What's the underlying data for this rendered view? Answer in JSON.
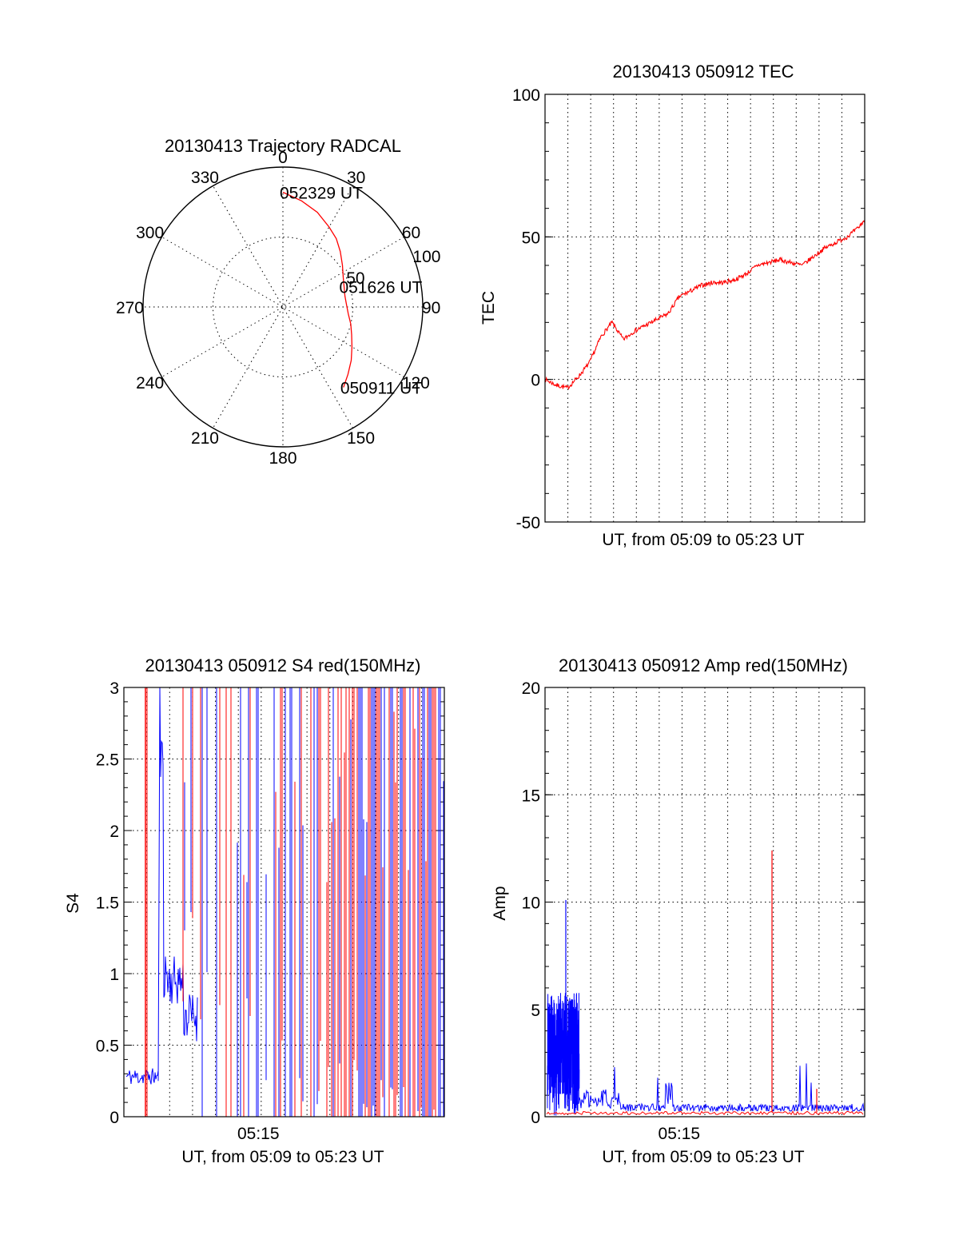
{
  "chart_data": [
    {
      "type": "polar",
      "title": "20130413 Trajectory RADCAL",
      "angle_labels": [
        "0",
        "30",
        "60",
        "90",
        "120",
        "150",
        "180",
        "210",
        "240",
        "270",
        "300",
        "330"
      ],
      "radius_labels": [
        "50",
        "100"
      ],
      "rmax": 100,
      "grid": true,
      "line_color": "#ff0000",
      "trajectory": {
        "azimuth_deg": [
          0,
          10,
          20,
          30,
          38,
          46,
          55,
          64,
          72,
          80,
          88,
          96,
          104,
          112,
          120,
          128,
          136,
          143
        ],
        "radius": [
          82,
          77,
          72,
          66,
          62,
          57,
          52,
          48,
          46,
          45,
          45.5,
          47,
          50,
          53,
          57,
          62,
          67,
          72
        ]
      },
      "annotations": [
        {
          "text": "052329 UT",
          "azimuth_deg": 0,
          "radius": 82
        },
        {
          "text": "051626 UT",
          "azimuth_deg": 71,
          "radius": 45
        },
        {
          "text": "050911 UT",
          "azimuth_deg": 143,
          "radius": 72
        }
      ]
    },
    {
      "type": "line",
      "title": "20130413 050912 TEC",
      "xlabel": "UT, from 05:09 to 05:23 UT",
      "ylabel": "TEC",
      "xlim": [
        0,
        14.3
      ],
      "ylim": [
        -50,
        100
      ],
      "yticks": [
        "100",
        "50",
        "0",
        "-50"
      ],
      "grid": true,
      "series": [
        {
          "color": "#ff0000",
          "x": [
            0,
            0.5,
            1.0,
            1.5,
            2.0,
            2.5,
            3.0,
            3.5,
            4.0,
            4.5,
            5.0,
            5.5,
            6.0,
            6.5,
            7.0,
            7.5,
            8.0,
            8.5,
            9.0,
            9.5,
            10.0,
            10.5,
            11.0,
            11.5,
            12.0,
            12.5,
            13.0,
            13.5,
            14.0,
            14.3
          ],
          "y": [
            0,
            -2,
            -3,
            1,
            6,
            15,
            20,
            14,
            17,
            19,
            21,
            23,
            29,
            31,
            33,
            34,
            34,
            35,
            37,
            40,
            41,
            42,
            41,
            40,
            43,
            46,
            48,
            50,
            53,
            56
          ]
        }
      ]
    },
    {
      "type": "line",
      "title": "20130413 050912 S4 red(150MHz)",
      "xlabel": "UT, from 05:09 to 05:23 UT",
      "ylabel": "S4",
      "xlim": [
        0,
        14.3
      ],
      "ylim": [
        0,
        3
      ],
      "yticks": [
        "3",
        "2.5",
        "2",
        "1.5",
        "1",
        "0.5",
        "0"
      ],
      "xticks": [
        "05:15"
      ],
      "grid": true,
      "series": [
        {
          "color": "#0000ff",
          "x": [
            0,
            0.4,
            0.8,
            1.2,
            1.4,
            1.6,
            1.8,
            2.0,
            2.3,
            2.6
          ],
          "y": [
            0.3,
            0.26,
            0.3,
            0.25,
            0.28,
            3,
            1.0,
            0.9,
            1.05,
            0.65
          ]
        },
        {
          "color": "#ff0000",
          "x": [
            0.9,
            0.9
          ],
          "y": [
            0,
            3
          ]
        }
      ]
    },
    {
      "type": "line",
      "title": "20130413 050912 Amp red(150MHz)",
      "xlabel": "UT, from 05:09 to 05:23 UT",
      "ylabel": "Amp",
      "xlim": [
        0,
        14.3
      ],
      "ylim": [
        0,
        20
      ],
      "yticks": [
        "20",
        "15",
        "10",
        "5",
        "0"
      ],
      "xticks": [
        "05:15"
      ],
      "grid": true,
      "series": [
        {
          "color": "#0000ff",
          "x": [
            0,
            0.5,
            0.8,
            1.0,
            1.3,
            1.5,
            3.0,
            5.5,
            9.0,
            14.3
          ],
          "y": [
            2.0,
            4.5,
            6.0,
            3.5,
            10.1,
            0.5,
            1.2,
            2.2,
            2.4,
            0.3
          ]
        },
        {
          "color": "#ff0000",
          "x": [
            10.2,
            12.2
          ],
          "y": [
            12.4,
            1.3
          ]
        }
      ]
    }
  ]
}
